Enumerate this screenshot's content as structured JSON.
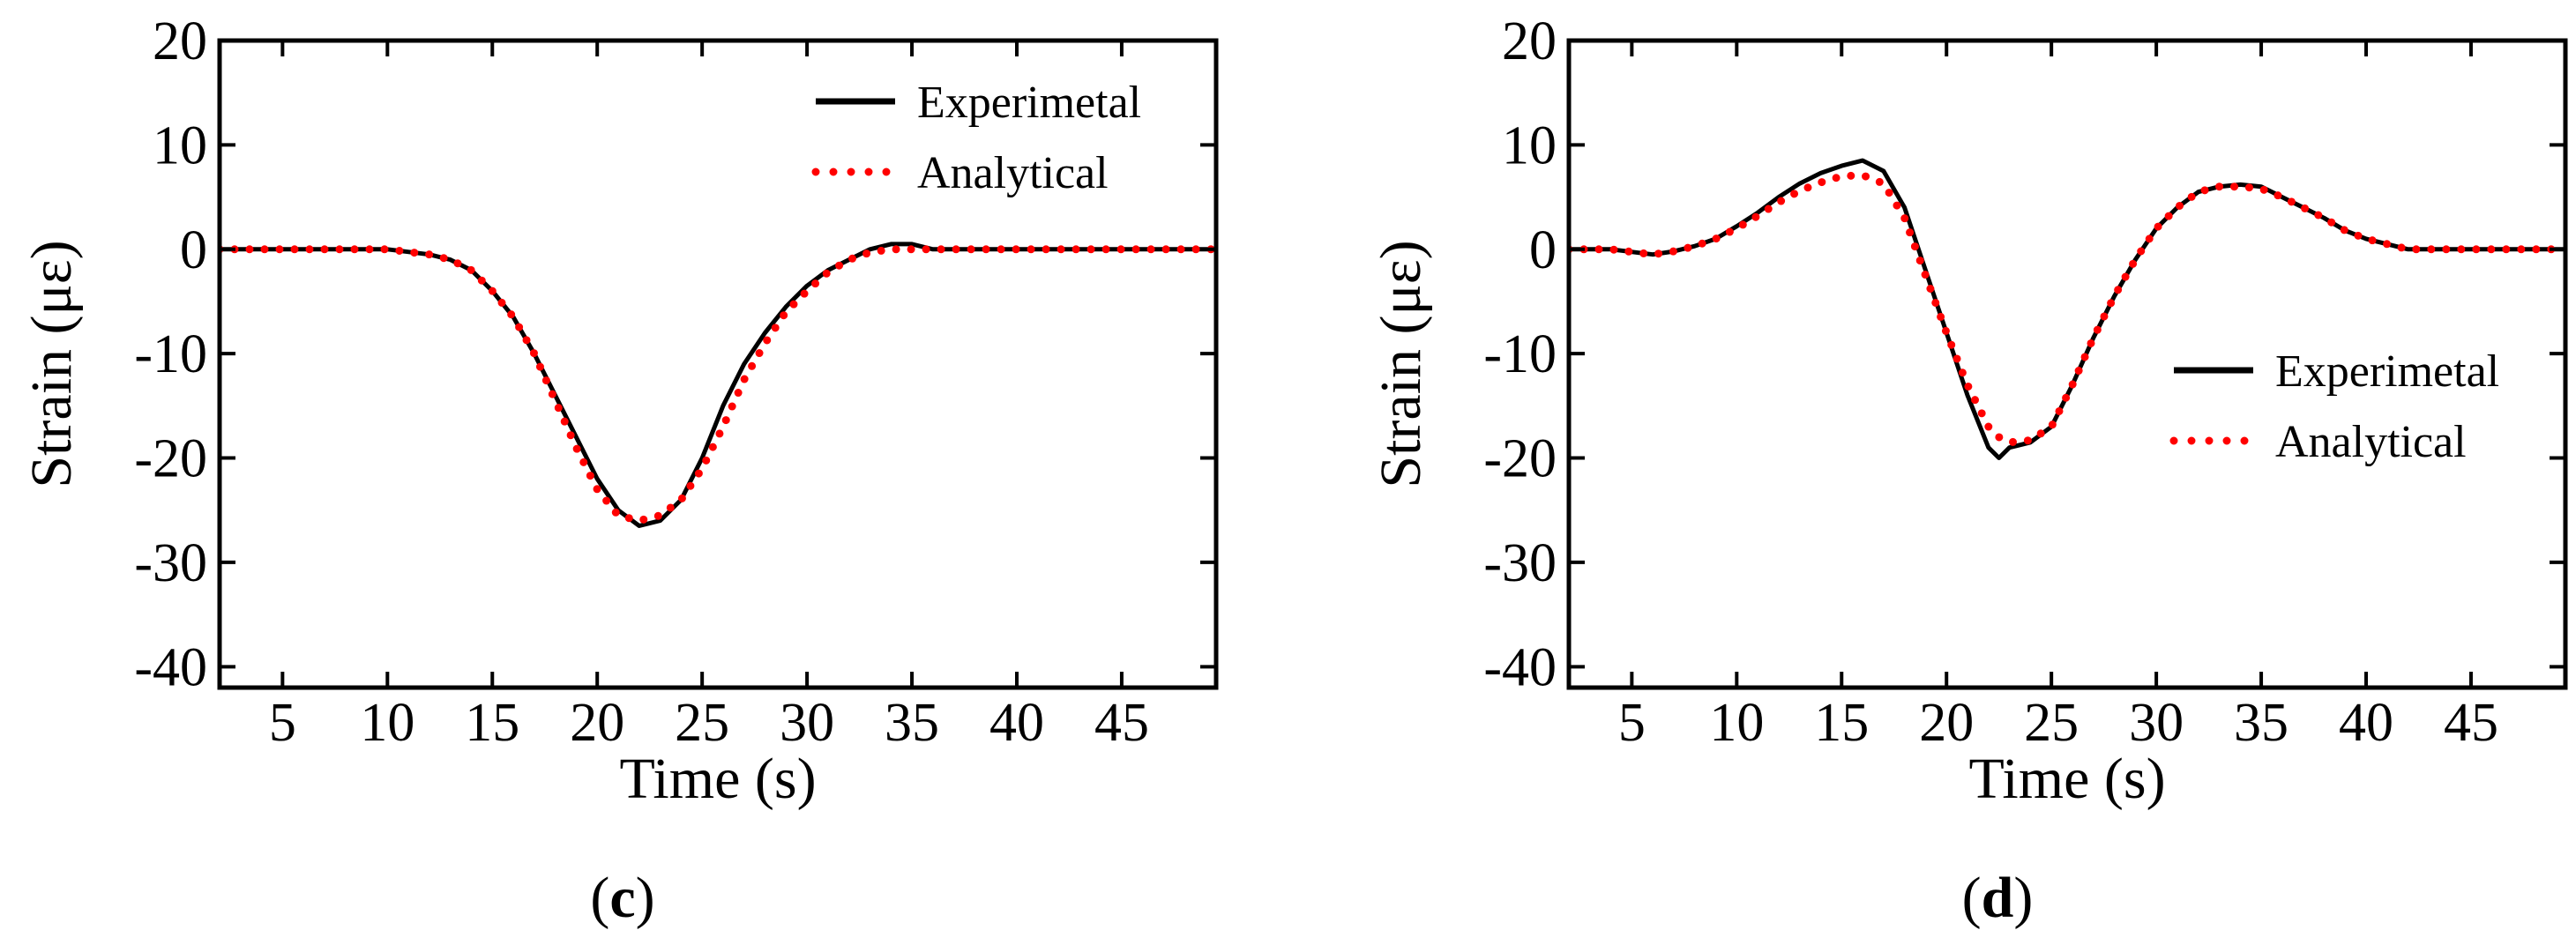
{
  "chart_data": [
    {
      "type": "line",
      "panel_label": "c",
      "xlabel": "Time (s)",
      "ylabel": "Strain (με)",
      "xlim": [
        2,
        49.5
      ],
      "ylim": [
        -42,
        20
      ],
      "xticks": [
        5,
        10,
        15,
        20,
        25,
        30,
        35,
        40,
        45
      ],
      "yticks": [
        20,
        10,
        0,
        -10,
        -20,
        -30,
        -40
      ],
      "legend_position": "top-right",
      "series": [
        {
          "name": "Experimetal",
          "style": "solid",
          "color": "#000000",
          "x": [
            2,
            4,
            6,
            8,
            10,
            12,
            13,
            14,
            15,
            16,
            17,
            18,
            19,
            20,
            21,
            22,
            23,
            24,
            25,
            26,
            27,
            28,
            29,
            30,
            31,
            32,
            33,
            34,
            35,
            36,
            38,
            40,
            42,
            44,
            46,
            48,
            49.5
          ],
          "y": [
            0,
            0,
            0,
            0,
            0,
            -0.5,
            -1,
            -2,
            -4,
            -6.5,
            -10,
            -14,
            -18,
            -22,
            -25,
            -26.5,
            -26,
            -24,
            -20,
            -15,
            -11,
            -8,
            -5.5,
            -3.5,
            -2,
            -1,
            0,
            0.5,
            0.5,
            0,
            0,
            0,
            0,
            0,
            0,
            0,
            0
          ]
        },
        {
          "name": "Analytical",
          "style": "dotted",
          "color": "#ff0000",
          "x": [
            2,
            4,
            6,
            8,
            10,
            12,
            13,
            14,
            15,
            16,
            17,
            18,
            19,
            20,
            21,
            22,
            23,
            24,
            25,
            26,
            27,
            28,
            29,
            30,
            31,
            32,
            33,
            34,
            35,
            36,
            38,
            40,
            42,
            44,
            46,
            48,
            49.5
          ],
          "y": [
            0,
            0,
            0,
            0,
            0,
            -0.5,
            -1,
            -2,
            -4,
            -6.5,
            -10,
            -14.5,
            -19,
            -23,
            -25.5,
            -26,
            -25.5,
            -24,
            -21,
            -17,
            -12.5,
            -9,
            -6,
            -4,
            -2.2,
            -1,
            -0.3,
            0,
            0,
            0,
            0,
            0,
            0,
            0,
            0,
            0,
            0
          ]
        }
      ]
    },
    {
      "type": "line",
      "panel_label": "d",
      "xlabel": "Time (s)",
      "ylabel": "Strain (με)",
      "xlim": [
        2,
        49.5
      ],
      "ylim": [
        -42,
        20
      ],
      "xticks": [
        5,
        10,
        15,
        20,
        25,
        30,
        35,
        40,
        45
      ],
      "yticks": [
        20,
        10,
        0,
        -10,
        -20,
        -30,
        -40
      ],
      "legend_position": "right",
      "series": [
        {
          "name": "Experimetal",
          "style": "solid",
          "color": "#000000",
          "x": [
            2,
            4,
            6,
            7,
            8,
            9,
            10,
            11,
            12,
            13,
            14,
            15,
            16,
            17,
            18,
            19,
            20,
            21,
            22,
            22.5,
            23,
            24,
            25,
            26,
            27,
            28,
            29,
            30,
            31,
            32,
            33,
            34,
            35,
            36,
            37,
            38,
            39,
            40,
            42,
            44,
            46,
            48,
            49.5
          ],
          "y": [
            0,
            0,
            -0.5,
            -0.2,
            0.3,
            1,
            2.2,
            3.5,
            5,
            6.3,
            7.3,
            8,
            8.5,
            7.5,
            4,
            -2,
            -8,
            -14,
            -19,
            -20,
            -19,
            -18.5,
            -17,
            -13,
            -8.5,
            -4.5,
            -1,
            2,
            4,
            5.5,
            6,
            6.2,
            6,
            5,
            4,
            3,
            1.8,
            1,
            0,
            0,
            0,
            0,
            0
          ]
        },
        {
          "name": "Analytical",
          "style": "dotted",
          "color": "#ff0000",
          "x": [
            2,
            4,
            6,
            7,
            8,
            9,
            10,
            11,
            12,
            13,
            14,
            15,
            16,
            17,
            18,
            19,
            20,
            21,
            22,
            22.5,
            23,
            24,
            25,
            26,
            27,
            28,
            29,
            30,
            31,
            32,
            33,
            34,
            35,
            36,
            37,
            38,
            39,
            40,
            42,
            44,
            46,
            48,
            49.5
          ],
          "y": [
            0,
            0,
            -0.5,
            -0.2,
            0.3,
            1,
            2,
            3.2,
            4.5,
            5.6,
            6.4,
            7,
            7.1,
            6.3,
            3,
            -2.5,
            -8,
            -13,
            -17,
            -18,
            -18.5,
            -18.3,
            -17,
            -13,
            -8.5,
            -4.5,
            -1,
            2,
            4,
            5.5,
            6,
            6,
            5.8,
            5,
            4,
            3,
            1.8,
            1,
            0,
            0,
            0,
            0,
            0
          ]
        }
      ]
    }
  ]
}
